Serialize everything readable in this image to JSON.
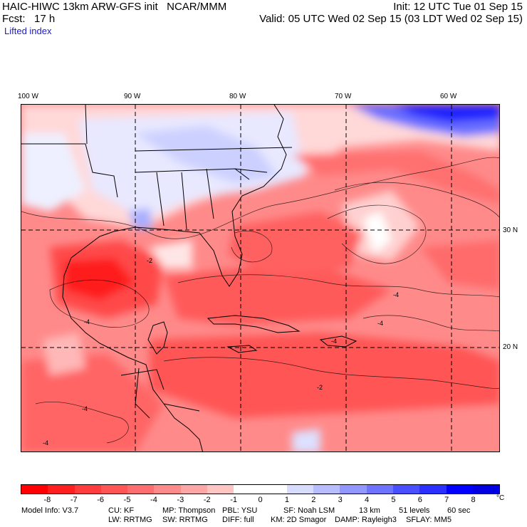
{
  "header": {
    "title_left": "HAIC-HIWC 13km ARW-GFS init   NCAR/MMM",
    "init": "Init: 12 UTC Tue 01 Sep 15",
    "fcst": "Fcst:   17 h",
    "valid": "Valid: 05 UTC Wed 02 Sep 15 (03 LDT Wed 02 Sep 15)",
    "field": "Lifted index"
  },
  "lon_labels": [
    "100 W",
    "90 W",
    "80 W",
    "70 W",
    "60 W"
  ],
  "lat_labels": [
    "30 N",
    "20 N"
  ],
  "colorbar": {
    "labels": [
      "-8",
      "-7",
      "-6",
      "-5",
      "-4",
      "-3",
      "-2",
      "-1",
      "0",
      "1",
      "2",
      "3",
      "4",
      "5",
      "6",
      "7",
      "8"
    ],
    "unit": "°C",
    "colors": [
      "#ff0000",
      "#ff1f1f",
      "#ff3d3d",
      "#ff5555",
      "#ff6e6e",
      "#ff8a8a",
      "#ffa6a6",
      "#ffc4c4",
      "#ffffff",
      "#ffffff",
      "#d8dcff",
      "#b8bdff",
      "#9298ff",
      "#6e74ff",
      "#4a50ff",
      "#2a30ff",
      "#0000ff",
      "#0000e0"
    ]
  },
  "footer": {
    "line1": [
      {
        "text": "Model Info: V3.7"
      },
      {
        "text": "CU: KF"
      },
      {
        "text": "MP: Thompson"
      },
      {
        "text": "PBL: YSU"
      },
      {
        "text": "SF: Noah LSM"
      },
      {
        "text": "13 km"
      },
      {
        "text": "51 levels"
      },
      {
        "text": "60 sec"
      }
    ],
    "line2": [
      {
        "text": "LW: RRTMG"
      },
      {
        "text": "SW: RRTMG"
      },
      {
        "text": "DIFF: full"
      },
      {
        "text": "KM: 2D Smagor"
      },
      {
        "text": "DAMP: Rayleigh3"
      },
      {
        "text": "SFLAY: MM5"
      }
    ]
  },
  "map": {
    "projection_grid_longitudes": [
      "100 W",
      "90 W",
      "80 W",
      "70 W",
      "60 W"
    ],
    "projection_grid_latitudes": [
      "30 N",
      "20 N"
    ],
    "contour_labels": [
      "-2",
      "-4",
      "-4",
      "-4",
      "-4",
      "-4",
      "-2",
      "-4"
    ]
  }
}
